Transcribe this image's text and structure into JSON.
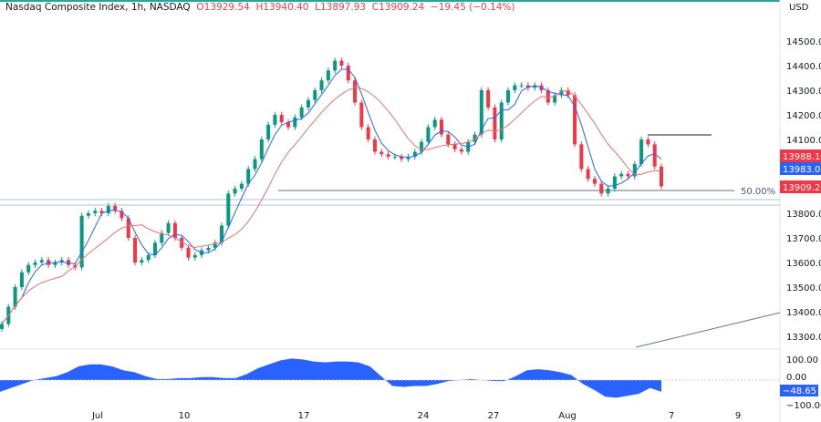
{
  "legend": {
    "symbol": "Nasdaq Composite Index, 1h, NASDAQ",
    "open": "O13929.54",
    "high": "H13940.40",
    "low": "L13897.93",
    "close": "C13909.24",
    "change": "−19.45 (−0.14%)"
  },
  "currency": "USD",
  "colors": {
    "up": "#089981",
    "down": "#f23645",
    "ma_fast": "#2962ff",
    "ma_slow": "#e57373",
    "oscillator": "#2962ff",
    "border": "#26a69a"
  },
  "chart_data": {
    "type": "candlestick",
    "x_tick_labels": [
      "Jul",
      "10",
      "17",
      "24",
      "27",
      "Aug",
      "7",
      "9"
    ],
    "y_tick_labels": [
      "14500.00",
      "14400.00",
      "14300.00",
      "14200.00",
      "14100.00",
      "13800.00",
      "13700.00",
      "13600.00",
      "13500.00",
      "13400.00",
      "13300.00"
    ],
    "ylim": [
      13300,
      14500
    ],
    "closes": [
      13350,
      13420,
      13500,
      13560,
      13590,
      13600,
      13610,
      13590,
      13600,
      13610,
      13590,
      13580,
      13790,
      13800,
      13810,
      13800,
      13830,
      13810,
      13780,
      13700,
      13600,
      13610,
      13630,
      13680,
      13720,
      13760,
      13700,
      13660,
      13620,
      13630,
      13650,
      13660,
      13680,
      13750,
      13880,
      13900,
      13920,
      13980,
      14020,
      14100,
      14160,
      14200,
      14170,
      14150,
      14190,
      14230,
      14260,
      14300,
      14340,
      14380,
      14420,
      14400,
      14340,
      14250,
      14150,
      14100,
      14050,
      14040,
      14030,
      14030,
      14020,
      14030,
      14050,
      14090,
      14150,
      14180,
      14120,
      14080,
      14060,
      14050,
      14090,
      14120,
      14300,
      14230,
      14100,
      14250,
      14300,
      14320,
      14320,
      14310,
      14320,
      14300,
      14250,
      14280,
      14300,
      14280,
      14080,
      13980,
      13940,
      13920,
      13880,
      13900,
      13950,
      13960,
      13950,
      14000,
      14100,
      14080,
      13990,
      13909.24
    ],
    "price_labels": [
      "13988.15",
      "13983.06",
      "13909.24"
    ],
    "fib_label": "50.00%",
    "oscillator": {
      "ylim": [
        -100,
        100
      ],
      "y_tick_labels": [
        "100.00",
        "0.00",
        "−100.00"
      ],
      "current": "−48.65",
      "values": [
        -60,
        -40,
        -20,
        0,
        10,
        20,
        40,
        70,
        80,
        80,
        70,
        50,
        40,
        20,
        5,
        5,
        10,
        10,
        15,
        15,
        10,
        10,
        30,
        60,
        80,
        100,
        110,
        105,
        95,
        90,
        95,
        95,
        90,
        70,
        20,
        -30,
        -35,
        -30,
        -30,
        -20,
        -5,
        0,
        5,
        0,
        -5,
        -5,
        20,
        50,
        55,
        50,
        40,
        25,
        -20,
        -50,
        -85,
        -90,
        -80,
        -70,
        -40,
        -60
      ]
    }
  }
}
